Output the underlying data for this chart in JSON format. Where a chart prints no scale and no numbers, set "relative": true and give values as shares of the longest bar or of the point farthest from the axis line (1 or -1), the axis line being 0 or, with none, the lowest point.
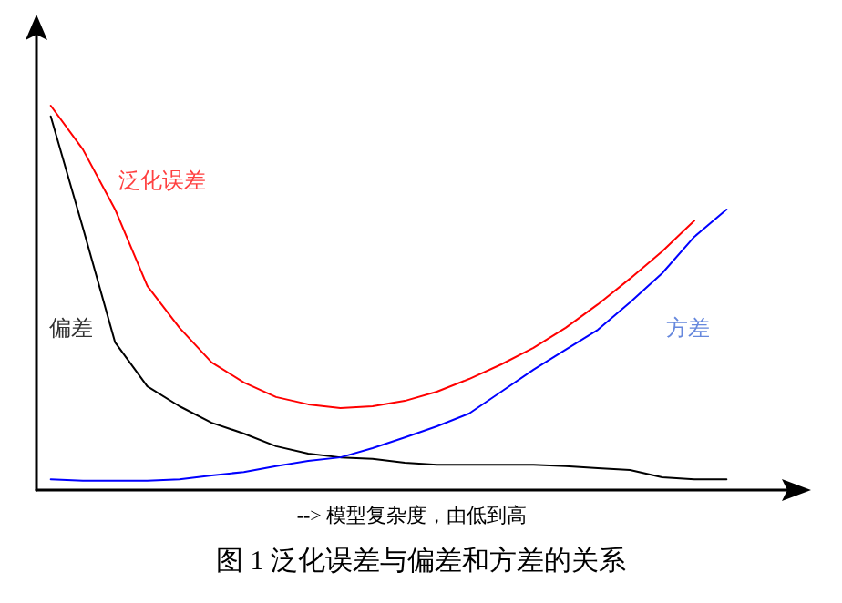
{
  "chart_data": {
    "type": "line",
    "relative": true,
    "title": "图 1 泛化误差与偏差和方差的关系",
    "xlabel": "--> 模型复杂度，由低到高",
    "categories": [
      null,
      null,
      null,
      null,
      null,
      null,
      null,
      null,
      null,
      null,
      null,
      null,
      null,
      null,
      null,
      null,
      null,
      null,
      null,
      null,
      null,
      null
    ],
    "series": [
      {
        "name": "泛化误差",
        "color": "#ff0000",
        "values": [
          1.0,
          0.886,
          0.73,
          0.531,
          0.422,
          0.332,
          0.28,
          0.242,
          0.223,
          0.213,
          0.218,
          0.232,
          0.256,
          0.289,
          0.327,
          0.37,
          0.422,
          0.483,
          0.55,
          0.621,
          0.701,
          null
        ]
      },
      {
        "name": "偏差",
        "color": "#000000",
        "values": [
          0.972,
          0.682,
          0.384,
          0.27,
          0.218,
          0.175,
          0.147,
          0.114,
          0.095,
          0.085,
          0.081,
          0.071,
          0.066,
          0.066,
          0.066,
          0.066,
          0.062,
          0.057,
          0.052,
          0.033,
          0.028,
          0.028
        ]
      },
      {
        "name": "方差",
        "color": "#0000ff",
        "values": [
          0.028,
          0.024,
          0.024,
          0.024,
          0.028,
          0.038,
          0.047,
          0.062,
          0.076,
          0.085,
          0.109,
          0.137,
          0.166,
          0.199,
          0.256,
          0.313,
          0.365,
          0.417,
          0.488,
          0.564,
          0.659,
          0.73
        ]
      }
    ],
    "grid": false,
    "legend": false,
    "marker": "none",
    "line_style": "solid"
  }
}
